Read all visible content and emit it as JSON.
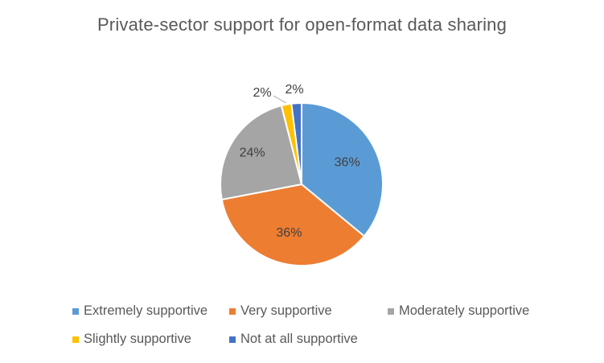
{
  "chart_data": {
    "type": "pie",
    "title": "Private-sector support for open-format data sharing",
    "categories": [
      "Extremely supportive",
      "Very supportive",
      "Moderately supportive",
      "Slightly supportive",
      "Not at all supportive"
    ],
    "values": [
      36,
      36,
      24,
      2,
      2
    ],
    "data_labels": [
      "36%",
      "36%",
      "24%",
      "2%",
      "2%"
    ],
    "colors": [
      "#5B9BD5",
      "#ED7D31",
      "#A5A5A5",
      "#FFC000",
      "#4472C4"
    ],
    "legend_position": "bottom",
    "start_angle": "12 o'clock, clockwise"
  }
}
